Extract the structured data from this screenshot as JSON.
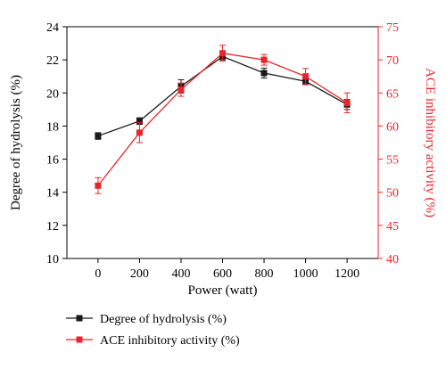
{
  "chart_data": {
    "type": "line",
    "title": "",
    "xlabel": "Power (watt)",
    "x": [
      0,
      200,
      400,
      600,
      800,
      1000,
      1200
    ],
    "xlim": [
      -150,
      1350
    ],
    "xticks": [
      0,
      200,
      400,
      600,
      800,
      1000,
      1200
    ],
    "y_left": {
      "label": "Degree of hydrolysis (%)",
      "lim": [
        10,
        24
      ],
      "ticks": [
        10,
        12,
        14,
        16,
        18,
        20,
        22,
        24
      ],
      "color": "#000000"
    },
    "y_right": {
      "label": "ACE inhibitory activity (%)",
      "lim": [
        40,
        75
      ],
      "ticks": [
        40,
        45,
        50,
        55,
        60,
        65,
        70,
        75
      ],
      "color": "#e8262a"
    },
    "series": [
      {
        "name": "Degree of hydrolysis (%)",
        "axis": "left",
        "color": "#1a1a1a",
        "values": [
          17.4,
          18.3,
          20.4,
          22.2,
          21.2,
          20.7,
          19.3
        ],
        "errors": [
          0.2,
          0.2,
          0.4,
          0.2,
          0.3,
          0.2,
          0.3
        ]
      },
      {
        "name": "ACE inhibitory activity (%)",
        "axis": "right",
        "color": "#e8262a",
        "values": [
          51.0,
          59.0,
          65.5,
          71.0,
          70.0,
          67.5,
          63.5
        ],
        "errors": [
          1.2,
          1.5,
          1.0,
          1.2,
          0.8,
          1.2,
          1.5
        ]
      }
    ],
    "legend_position": "bottom-left",
    "grid": false
  }
}
